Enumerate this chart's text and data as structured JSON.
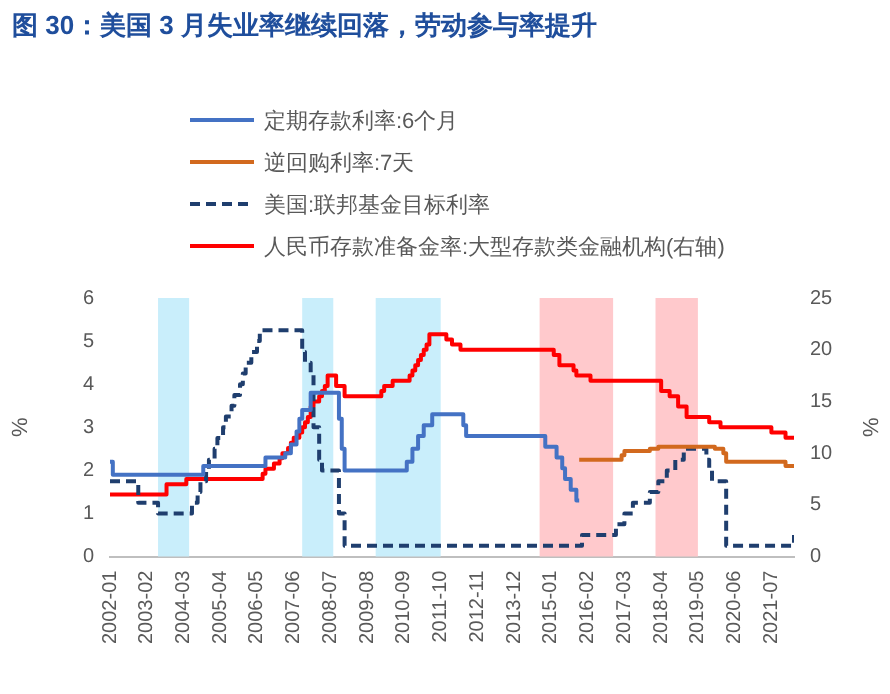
{
  "chart_data": {
    "type": "step",
    "title": "图 30：美国 3 月失业率继续回落，劳动参与率提升",
    "ylabel": "%",
    "y2label": "%",
    "legend": "top",
    "marker": "none",
    "grid": false,
    "xlim": [
      "2002-01",
      "2022-03"
    ],
    "xticks": [
      "2002-01",
      "2003-02",
      "2004-03",
      "2005-04",
      "2006-05",
      "2007-06",
      "2008-07",
      "2009-08",
      "2010-09",
      "2011-10",
      "2012-11",
      "2013-12",
      "2015-01",
      "2016-02",
      "2017-03",
      "2018-04",
      "2019-05",
      "2020-06",
      "2021-07"
    ],
    "ylim": [
      0,
      6
    ],
    "yticks": [
      0,
      1,
      2,
      3,
      4,
      5,
      6
    ],
    "y2lim": [
      0,
      25
    ],
    "y2ticks": [
      0,
      5,
      10,
      15,
      20,
      25
    ],
    "bands": [
      {
        "axis": "x",
        "from": "2003-06",
        "to": "2004-05",
        "color": "#c9eefb"
      },
      {
        "axis": "x",
        "from": "2007-09",
        "to": "2008-08",
        "color": "#c9eefb"
      },
      {
        "axis": "x",
        "from": "2009-11",
        "to": "2011-10",
        "color": "#c9eefb"
      },
      {
        "axis": "x",
        "from": "2014-09",
        "to": "2016-11",
        "color": "#ffc9cc"
      },
      {
        "axis": "x",
        "from": "2018-02",
        "to": "2019-05",
        "color": "#ffc9cc"
      }
    ],
    "series": [
      {
        "name": "定期存款利率:6个月",
        "color": "#4472c4",
        "x": [
          "2002-01",
          "2002-02",
          "2004-10",
          "2006-08",
          "2007-03",
          "2007-05",
          "2007-07",
          "2007-08",
          "2007-09",
          "2007-12",
          "2008-10",
          "2008-11",
          "2008-12",
          "2010-10",
          "2010-12",
          "2011-02",
          "2011-04",
          "2011-07",
          "2012-06",
          "2012-07",
          "2014-11",
          "2015-03",
          "2015-05",
          "2015-06",
          "2015-08",
          "2015-10",
          "2015-11"
        ],
        "values": [
          2.2,
          1.9,
          2.1,
          2.3,
          2.4,
          2.6,
          2.9,
          3.2,
          3.4,
          3.8,
          3.2,
          2.5,
          2.0,
          2.2,
          2.5,
          2.8,
          3.05,
          3.3,
          3.05,
          2.8,
          2.55,
          2.3,
          2.05,
          1.8,
          1.55,
          1.3,
          1.3
        ]
      },
      {
        "name": "逆回购利率:7天",
        "color": "#d2691e",
        "x": [
          "2015-11",
          "2017-02",
          "2017-03",
          "2017-12",
          "2018-03",
          "2019-11",
          "2020-02",
          "2020-03",
          "2021-12",
          "2022-03"
        ],
        "values": [
          2.25,
          2.35,
          2.45,
          2.5,
          2.55,
          2.5,
          2.4,
          2.2,
          2.1,
          2.1
        ]
      },
      {
        "name": "美国:联邦基金目标利率",
        "color": "#1f3e6e",
        "line_style": "dashed",
        "x": [
          "2002-01",
          "2002-11",
          "2003-06",
          "2004-06",
          "2004-08",
          "2004-09",
          "2004-11",
          "2004-12",
          "2005-02",
          "2005-03",
          "2005-05",
          "2005-06",
          "2005-08",
          "2005-09",
          "2005-11",
          "2005-12",
          "2006-01",
          "2006-03",
          "2006-05",
          "2006-06",
          "2007-09",
          "2007-10",
          "2007-12",
          "2008-01",
          "2008-03",
          "2008-04",
          "2008-10",
          "2008-12",
          "2015-12",
          "2016-12",
          "2017-03",
          "2017-06",
          "2017-12",
          "2018-03",
          "2018-06",
          "2018-09",
          "2018-12",
          "2019-08",
          "2019-09",
          "2019-10",
          "2020-03",
          "2022-03"
        ],
        "values": [
          1.75,
          1.25,
          1,
          1.25,
          1.5,
          1.75,
          2,
          2.25,
          2.5,
          2.75,
          3,
          3.25,
          3.5,
          3.75,
          4,
          4.25,
          4.5,
          4.75,
          5,
          5.25,
          4.75,
          4.5,
          4.25,
          3,
          2.25,
          2,
          1,
          0.25,
          0.5,
          0.75,
          1,
          1.25,
          1.5,
          1.75,
          2,
          2.25,
          2.5,
          2.25,
          2,
          1.75,
          0.25,
          0.5
        ]
      },
      {
        "name": "人民币存款准备金率:大型存款类金融机构(右轴)",
        "color": "#ff0000",
        "axis": "y2",
        "x": [
          "2002-01",
          "2003-09",
          "2004-04",
          "2006-07",
          "2006-08",
          "2006-11",
          "2007-01",
          "2007-02",
          "2007-04",
          "2007-05",
          "2007-06",
          "2007-08",
          "2007-09",
          "2007-10",
          "2007-11",
          "2007-12",
          "2008-01",
          "2008-03",
          "2008-04",
          "2008-05",
          "2008-06",
          "2008-09",
          "2008-12",
          "2010-01",
          "2010-02",
          "2010-05",
          "2010-11",
          "2010-12",
          "2011-01",
          "2011-02",
          "2011-03",
          "2011-04",
          "2011-05",
          "2011-06",
          "2011-12",
          "2012-02",
          "2012-05",
          "2015-02",
          "2015-04",
          "2015-09",
          "2015-10",
          "2016-03",
          "2018-04",
          "2018-07",
          "2018-10",
          "2019-01",
          "2019-09",
          "2020-01",
          "2021-07",
          "2021-12",
          "2022-03"
        ],
        "values": [
          6,
          7,
          7.5,
          8,
          8.5,
          9,
          9.5,
          10,
          10.5,
          11,
          11.5,
          12,
          12.5,
          13,
          13.5,
          14.5,
          15,
          15.5,
          16,
          16.5,
          17.5,
          16.5,
          15.5,
          16,
          16.5,
          17,
          17.5,
          18,
          18.5,
          19,
          19.5,
          20,
          20.5,
          21.5,
          21,
          20.5,
          20,
          19.5,
          18.5,
          18,
          17.5,
          17,
          16,
          15.5,
          14.5,
          13.5,
          13,
          12.5,
          12,
          11.5,
          11.5
        ]
      }
    ]
  }
}
